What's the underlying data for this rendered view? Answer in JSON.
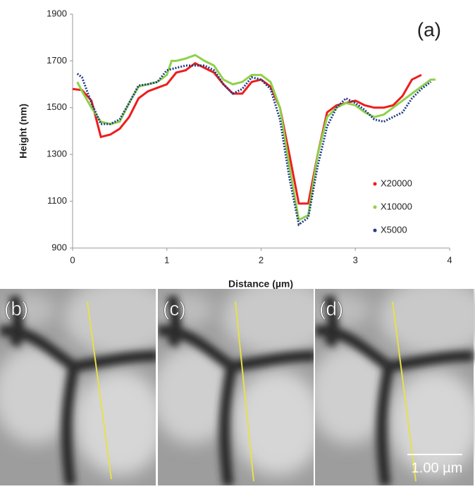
{
  "chart_data": {
    "type": "line",
    "x_label": "Distance (µm)",
    "y_label": "Height (nm)",
    "annotation": "(a)",
    "xlim": [
      0,
      4
    ],
    "xticks": [
      0,
      1,
      2,
      3,
      4
    ],
    "ylim": [
      900,
      1900
    ],
    "yticks": [
      900,
      1100,
      1300,
      1500,
      1700,
      1900
    ],
    "series": [
      {
        "name": "X20000",
        "color": "#ee1c1c",
        "x": [
          0,
          0.1,
          0.2,
          0.3,
          0.4,
          0.5,
          0.6,
          0.7,
          0.8,
          0.9,
          1.0,
          1.1,
          1.2,
          1.3,
          1.4,
          1.5,
          1.6,
          1.7,
          1.8,
          1.9,
          2.0,
          2.1,
          2.2,
          2.3,
          2.4,
          2.5,
          2.6,
          2.7,
          2.8,
          2.9,
          3.0,
          3.1,
          3.2,
          3.3,
          3.4,
          3.5,
          3.6,
          3.7
        ],
        "values": [
          1580,
          1575,
          1530,
          1375,
          1385,
          1410,
          1460,
          1540,
          1570,
          1585,
          1600,
          1650,
          1660,
          1690,
          1670,
          1650,
          1600,
          1560,
          1560,
          1610,
          1620,
          1590,
          1500,
          1300,
          1090,
          1090,
          1300,
          1480,
          1510,
          1520,
          1530,
          1510,
          1500,
          1500,
          1510,
          1550,
          1620,
          1640
        ]
      },
      {
        "name": "X10000",
        "color": "#8ed14a",
        "x": [
          0.05,
          0.1,
          0.2,
          0.3,
          0.4,
          0.5,
          0.6,
          0.7,
          0.8,
          0.9,
          1.0,
          1.05,
          1.1,
          1.2,
          1.3,
          1.4,
          1.5,
          1.6,
          1.7,
          1.8,
          1.9,
          2.0,
          2.1,
          2.2,
          2.3,
          2.4,
          2.5,
          2.6,
          2.7,
          2.8,
          2.9,
          3.0,
          3.1,
          3.2,
          3.3,
          3.4,
          3.5,
          3.6,
          3.7,
          3.8,
          3.85
        ],
        "values": [
          1610,
          1570,
          1500,
          1440,
          1430,
          1440,
          1520,
          1590,
          1600,
          1610,
          1640,
          1700,
          1700,
          1710,
          1725,
          1700,
          1680,
          1620,
          1600,
          1610,
          1640,
          1640,
          1610,
          1500,
          1250,
          1020,
          1040,
          1300,
          1460,
          1500,
          1520,
          1510,
          1480,
          1460,
          1470,
          1500,
          1530,
          1560,
          1590,
          1620,
          1620
        ]
      },
      {
        "name": "X5000",
        "color": "#1f3c88",
        "x": [
          0.05,
          0.1,
          0.2,
          0.3,
          0.4,
          0.5,
          0.6,
          0.7,
          0.8,
          0.9,
          1.0,
          1.1,
          1.2,
          1.3,
          1.4,
          1.5,
          1.6,
          1.7,
          1.8,
          1.9,
          2.0,
          2.1,
          2.2,
          2.3,
          2.4,
          2.5,
          2.6,
          2.7,
          2.8,
          2.9,
          3.0,
          3.1,
          3.2,
          3.3,
          3.4,
          3.5,
          3.6,
          3.7,
          3.8
        ],
        "values": [
          1645,
          1630,
          1520,
          1430,
          1430,
          1450,
          1520,
          1595,
          1600,
          1610,
          1660,
          1670,
          1680,
          1680,
          1680,
          1660,
          1600,
          1560,
          1580,
          1630,
          1620,
          1580,
          1450,
          1200,
          1000,
          1030,
          1250,
          1420,
          1500,
          1540,
          1520,
          1490,
          1450,
          1440,
          1460,
          1480,
          1540,
          1580,
          1610
        ]
      }
    ]
  },
  "panels": [
    {
      "label": "(b)"
    },
    {
      "label": "(c)"
    },
    {
      "label": "(d)"
    }
  ],
  "scale_bar": "1.00 µm"
}
